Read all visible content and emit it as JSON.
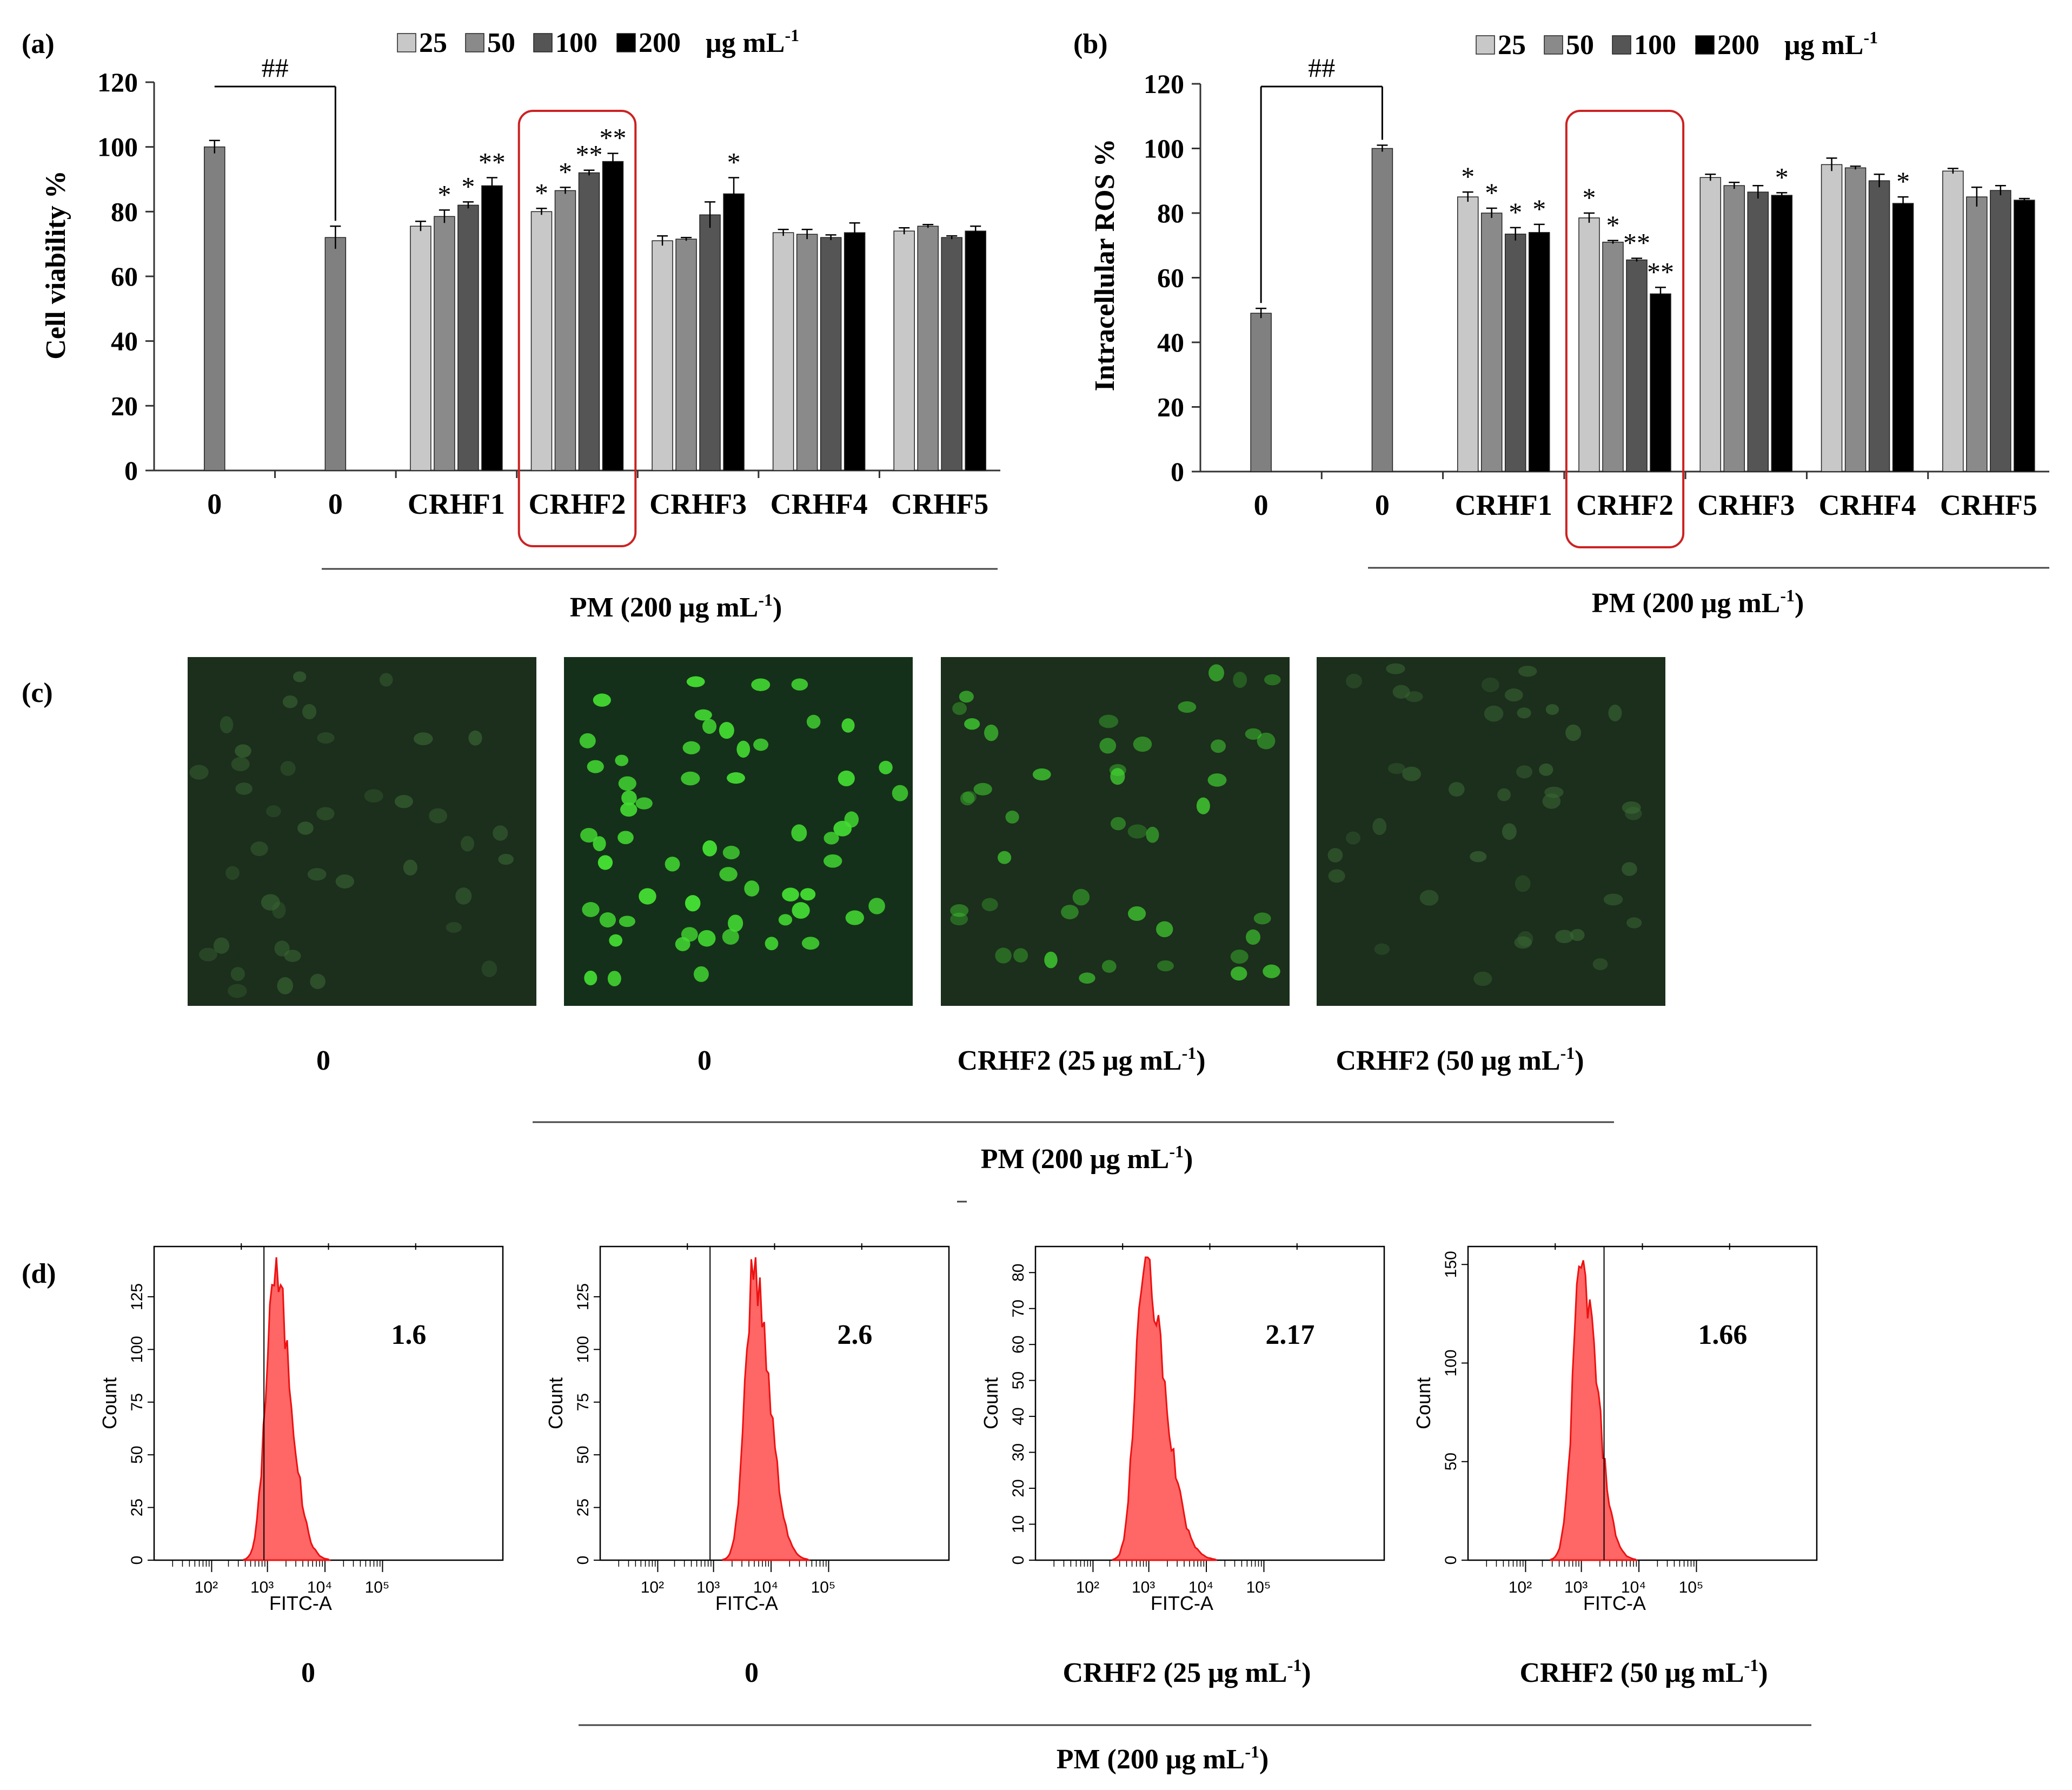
{
  "chart_data": [
    {
      "panel": "(a)",
      "type": "bar",
      "ylabel": "Cell viability %",
      "ylim": [
        0,
        120
      ],
      "yticks": [
        0,
        20,
        40,
        60,
        80,
        100,
        120
      ],
      "legend": {
        "items": [
          "25",
          "50",
          "100",
          "200"
        ],
        "unit": "μg mL",
        "unit_sup": "-1"
      },
      "legend_colors": [
        "#c8c8c8",
        "#8a8a8a",
        "#555555",
        "#000000"
      ],
      "significance_top": "##",
      "x_title": "PM (200 μg mL",
      "x_title_sup": "-1",
      "x_title_end": ")",
      "groups": [
        {
          "label": "0",
          "bars": [
            {
              "dose": "none",
              "value": 100,
              "err": 2
            }
          ]
        },
        {
          "label": "0",
          "bars": [
            {
              "dose": "none",
              "value": 72,
              "err": 3.5
            }
          ]
        },
        {
          "label": "CRHF1",
          "bars": [
            {
              "dose": "25",
              "value": 75.5,
              "err": 1.5,
              "sig": ""
            },
            {
              "dose": "50",
              "value": 78.5,
              "err": 2,
              "sig": "*"
            },
            {
              "dose": "100",
              "value": 82,
              "err": 1,
              "sig": "*"
            },
            {
              "dose": "200",
              "value": 88,
              "err": 2.5,
              "sig": "**"
            }
          ]
        },
        {
          "label": "CRHF2",
          "highlight": true,
          "bars": [
            {
              "dose": "25",
              "value": 80,
              "err": 1,
              "sig": "*"
            },
            {
              "dose": "50",
              "value": 86.5,
              "err": 1,
              "sig": "*"
            },
            {
              "dose": "100",
              "value": 92,
              "err": 0.8,
              "sig": "**"
            },
            {
              "dose": "200",
              "value": 95.5,
              "err": 2.5,
              "sig": "**"
            }
          ]
        },
        {
          "label": "CRHF3",
          "bars": [
            {
              "dose": "25",
              "value": 71,
              "err": 1.5,
              "sig": ""
            },
            {
              "dose": "50",
              "value": 71.5,
              "err": 0.5,
              "sig": ""
            },
            {
              "dose": "100",
              "value": 79,
              "err": 4,
              "sig": ""
            },
            {
              "dose": "200",
              "value": 85.5,
              "err": 5,
              "sig": "*"
            }
          ]
        },
        {
          "label": "CRHF4",
          "bars": [
            {
              "dose": "25",
              "value": 73.5,
              "err": 1,
              "sig": ""
            },
            {
              "dose": "50",
              "value": 73,
              "err": 1.5,
              "sig": ""
            },
            {
              "dose": "100",
              "value": 72,
              "err": 0.8,
              "sig": ""
            },
            {
              "dose": "200",
              "value": 73.5,
              "err": 3,
              "sig": ""
            }
          ]
        },
        {
          "label": "CRHF5",
          "bars": [
            {
              "dose": "25",
              "value": 74,
              "err": 1,
              "sig": ""
            },
            {
              "dose": "50",
              "value": 75.5,
              "err": 0.5,
              "sig": ""
            },
            {
              "dose": "100",
              "value": 72,
              "err": 0.5,
              "sig": ""
            },
            {
              "dose": "200",
              "value": 74,
              "err": 1.5,
              "sig": ""
            }
          ]
        }
      ]
    },
    {
      "panel": "(b)",
      "type": "bar",
      "ylabel": "Intracellular ROS %",
      "ylim": [
        0,
        120
      ],
      "yticks": [
        0,
        20,
        40,
        60,
        80,
        100,
        120
      ],
      "legend": {
        "items": [
          "25",
          "50",
          "100",
          "200"
        ],
        "unit": "μg mL",
        "unit_sup": "-1"
      },
      "legend_colors": [
        "#c8c8c8",
        "#8a8a8a",
        "#555555",
        "#000000"
      ],
      "significance_top": "##",
      "x_title": "PM (200 μg mL",
      "x_title_sup": "-1",
      "x_title_end": ")",
      "groups": [
        {
          "label": "0",
          "bars": [
            {
              "dose": "none",
              "value": 49,
              "err": 1.5
            }
          ]
        },
        {
          "label": "0",
          "bars": [
            {
              "dose": "none",
              "value": 100,
              "err": 1
            }
          ]
        },
        {
          "label": "CRHF1",
          "bars": [
            {
              "dose": "25",
              "value": 85,
              "err": 1.5,
              "sig": "*"
            },
            {
              "dose": "50",
              "value": 80,
              "err": 1.5,
              "sig": "*"
            },
            {
              "dose": "100",
              "value": 73.5,
              "err": 2,
              "sig": "*"
            },
            {
              "dose": "200",
              "value": 74,
              "err": 2.5,
              "sig": "*"
            }
          ]
        },
        {
          "label": "CRHF2",
          "highlight": true,
          "bars": [
            {
              "dose": "25",
              "value": 78.5,
              "err": 1.5,
              "sig": "*"
            },
            {
              "dose": "50",
              "value": 71,
              "err": 0.5,
              "sig": "*"
            },
            {
              "dose": "100",
              "value": 65.5,
              "err": 0.5,
              "sig": "**"
            },
            {
              "dose": "200",
              "value": 55,
              "err": 2,
              "sig": "**"
            }
          ]
        },
        {
          "label": "CRHF3",
          "bars": [
            {
              "dose": "25",
              "value": 91,
              "err": 1,
              "sig": ""
            },
            {
              "dose": "50",
              "value": 88.5,
              "err": 1,
              "sig": ""
            },
            {
              "dose": "100",
              "value": 86.5,
              "err": 2,
              "sig": ""
            },
            {
              "dose": "200",
              "value": 85.5,
              "err": 0.8,
              "sig": "*"
            }
          ]
        },
        {
          "label": "CRHF4",
          "bars": [
            {
              "dose": "25",
              "value": 95,
              "err": 2,
              "sig": ""
            },
            {
              "dose": "50",
              "value": 94,
              "err": 0.5,
              "sig": ""
            },
            {
              "dose": "100",
              "value": 90,
              "err": 2,
              "sig": ""
            },
            {
              "dose": "200",
              "value": 83,
              "err": 2,
              "sig": "*"
            }
          ]
        },
        {
          "label": "CRHF5",
          "bars": [
            {
              "dose": "25",
              "value": 93,
              "err": 0.8,
              "sig": ""
            },
            {
              "dose": "50",
              "value": 85,
              "err": 3,
              "sig": ""
            },
            {
              "dose": "100",
              "value": 87,
              "err": 1.5,
              "sig": ""
            },
            {
              "dose": "200",
              "value": 84,
              "err": 0.5,
              "sig": ""
            }
          ]
        }
      ]
    }
  ],
  "panel_c": {
    "label": "(c)",
    "images": [
      {
        "caption": "0",
        "brightness": "dim"
      },
      {
        "caption": "0",
        "brightness": "bright"
      },
      {
        "caption": "CRHF2 (25 μg mL",
        "caption_sup": "-1",
        "caption_end": ")",
        "brightness": "medium"
      },
      {
        "caption": "CRHF2 (50 μg mL",
        "caption_sup": "-1",
        "caption_end": ")",
        "brightness": "dim"
      }
    ],
    "pm_label": "PM (200 μg mL",
    "pm_sup": "-1",
    "pm_end": ")",
    "image_color": "#1a2a1a",
    "fluor_color": "#44dd33"
  },
  "panel_d": {
    "label": "(d)",
    "x_axis_label": "FITC-A",
    "y_axis_label": "Count",
    "x_ticks": [
      "10²",
      "10³",
      "10⁴",
      "10⁵"
    ],
    "histogram_color": "#ff6666",
    "plots": [
      {
        "caption": "0",
        "value_label": "1.6",
        "yticks": [
          "0",
          "25",
          "50",
          "75",
          "100",
          "125"
        ],
        "ymax": 145,
        "peak": 0.69,
        "gate": 0.315
      },
      {
        "caption": "0",
        "value_label": "2.6",
        "yticks": [
          "0",
          "25",
          "50",
          "75",
          "100",
          "125"
        ],
        "ymax": 145,
        "peak": 0.88,
        "gate": 0.315
      },
      {
        "caption": "CRHF2 (25 μg mL",
        "caption_sup": "-1",
        "caption_end": ")",
        "value_label": "2.17",
        "yticks": [
          "0",
          "10",
          "20",
          "30",
          "40",
          "50",
          "60",
          "70",
          "80"
        ],
        "ymax": 85,
        "peak": 0.62,
        "gate": null
      },
      {
        "caption": "CRHF2 (50 μg mL",
        "caption_sup": "-1",
        "caption_end": ")",
        "value_label": "1.66",
        "yticks": [
          "0",
          "50",
          "100",
          "150"
        ],
        "ymax": 155,
        "peak": 0.65,
        "gate": 0.39
      }
    ],
    "pm_label": "PM (200 μg mL",
    "pm_sup": "-1",
    "pm_end": ")"
  }
}
